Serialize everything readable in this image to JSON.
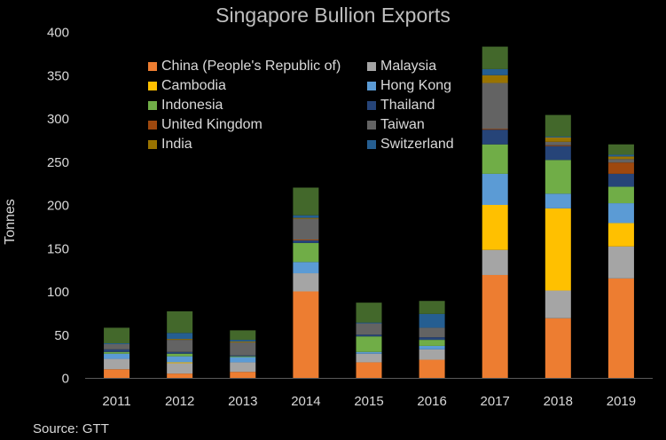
{
  "chart_data": {
    "type": "bar",
    "stacked": true,
    "title": "Singapore Bullion Exports",
    "ylabel": "Tonnes",
    "ylim": [
      0,
      400
    ],
    "yticks": [
      0,
      50,
      100,
      150,
      200,
      250,
      300,
      350,
      400
    ],
    "grid": false,
    "legend_position": "top-left",
    "categories": [
      "2011",
      "2012",
      "2013",
      "2014",
      "2015",
      "2016",
      "2017",
      "2018",
      "2019"
    ],
    "series": [
      {
        "name": "China (People's Republic of)",
        "color": "#ED7D31",
        "values": [
          10,
          5,
          7,
          100,
          18,
          21,
          119,
          69,
          115
        ]
      },
      {
        "name": "Malaysia",
        "color": "#A5A5A5",
        "values": [
          12,
          12,
          11,
          21,
          10,
          12,
          29,
          32,
          37
        ]
      },
      {
        "name": "Cambodia",
        "color": "#FFC000",
        "values": [
          0,
          1,
          0,
          0,
          0,
          0,
          52,
          95,
          27
        ]
      },
      {
        "name": "Hong Kong",
        "color": "#5B9BD5",
        "values": [
          6,
          7,
          6,
          13,
          2,
          4,
          36,
          17,
          23
        ]
      },
      {
        "name": "Indonesia",
        "color": "#70AD47",
        "values": [
          2,
          3,
          1,
          22,
          18,
          7,
          34,
          39,
          19
        ]
      },
      {
        "name": "Thailand",
        "color": "#264478",
        "values": [
          3,
          2,
          1,
          3,
          2,
          3,
          17,
          16,
          15
        ]
      },
      {
        "name": "United Kingdom",
        "color": "#9E480E",
        "values": [
          0,
          0,
          0,
          1,
          0,
          0,
          1,
          1,
          13
        ]
      },
      {
        "name": "Taiwan",
        "color": "#636363",
        "values": [
          6,
          14,
          15,
          24,
          13,
          11,
          53,
          4,
          4
        ]
      },
      {
        "name": "India",
        "color": "#997300",
        "values": [
          0,
          1,
          1,
          1,
          0,
          0,
          9,
          5,
          3
        ]
      },
      {
        "name": "Switzerland",
        "color": "#255E91",
        "values": [
          1,
          7,
          2,
          3,
          1,
          16,
          7,
          1,
          2
        ]
      },
      {
        "color": "#43682B",
        "in_legend": false,
        "values": [
          18,
          25,
          11,
          32,
          23,
          15,
          26,
          25,
          12
        ]
      }
    ]
  },
  "source": "Source: GTT"
}
